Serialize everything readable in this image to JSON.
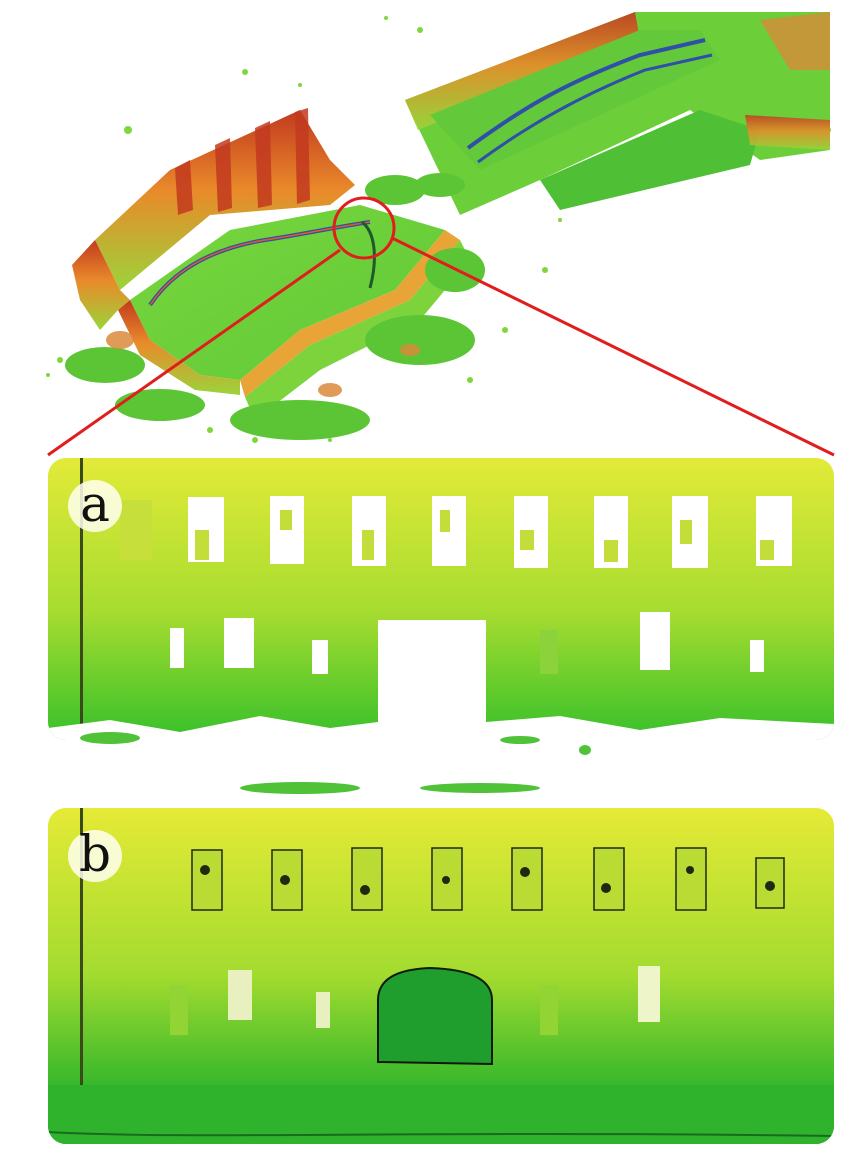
{
  "panels": {
    "a": {
      "label": "a"
    },
    "b": {
      "label": "b"
    }
  },
  "colors": {
    "ground_green": "#6dd23a",
    "wall_yellow": "#d8ea3b",
    "wall_orange": "#e98a2a",
    "wall_red": "#c23a1f",
    "track_blue": "#2f4fa8",
    "highlight_red": "#e11d1d"
  }
}
